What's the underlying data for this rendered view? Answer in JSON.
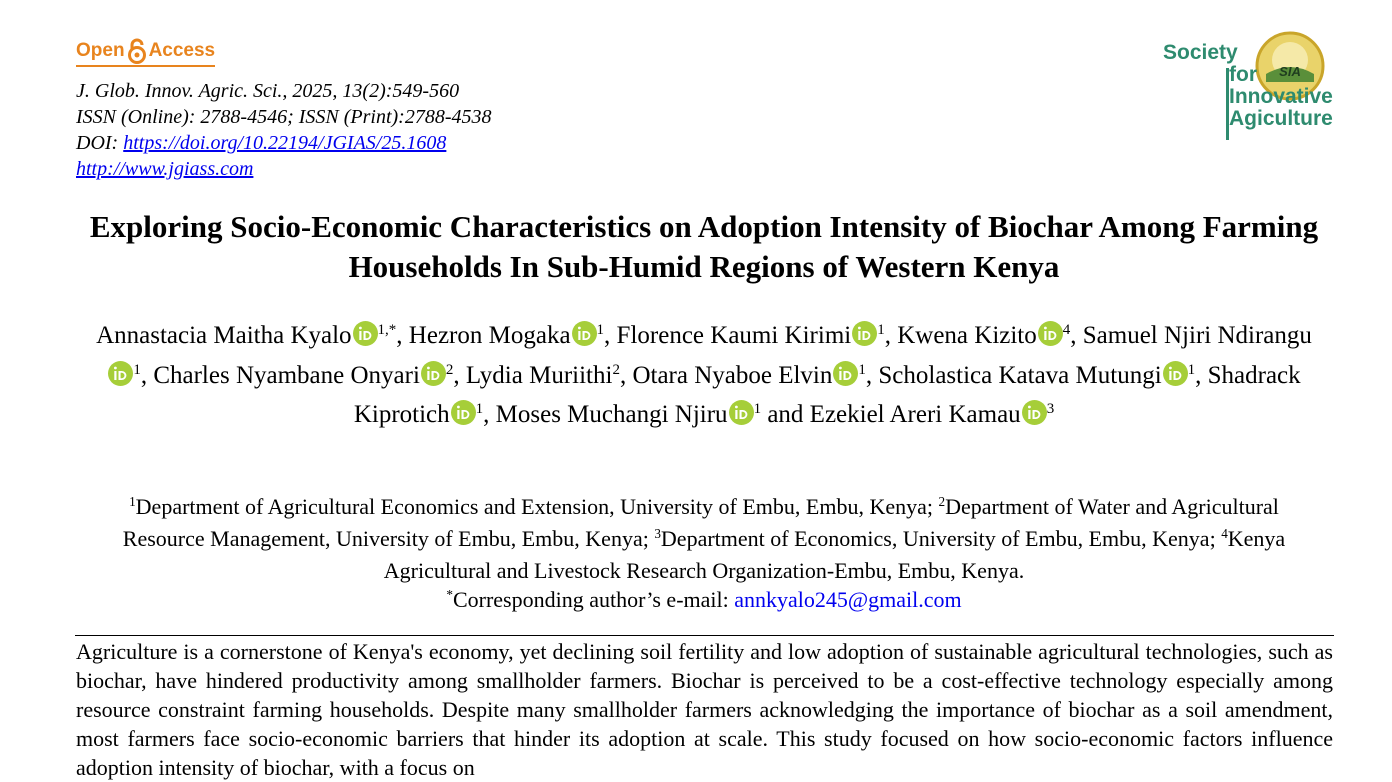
{
  "header": {
    "open_access": {
      "open": "Open",
      "access": "Access"
    },
    "citation": "J. Glob. Innov. Agric. Sci., 2025, 13(2):549-560",
    "issn": "ISSN (Online): 2788-4546; ISSN (Print):2788-4538",
    "doi_label": "DOI:",
    "doi_url": "https://doi.org/10.22194/JGIAS/25.1608",
    "website": "http://www.jgiass.com",
    "society_logo": {
      "line1": "Society",
      "line2": "for",
      "line3": "Innovative",
      "line4": "Agiculture",
      "badge": "SIA"
    }
  },
  "title": "Exploring Socio-Economic Characteristics on Adoption Intensity of Biochar Among Farming Households In Sub-Humid Regions of Western Kenya",
  "authors": [
    {
      "name": "Annastacia Maitha Kyalo",
      "affil": "1,*",
      "sep": ","
    },
    {
      "name": "Hezron Mogaka",
      "affil": "1",
      "sep": ","
    },
    {
      "name": "Florence Kaumi Kirimi",
      "affil": "1",
      "sep": ","
    },
    {
      "name": "Kwena Kizito",
      "affil": "4",
      "sep": ","
    },
    {
      "name": "Samuel Njiri Ndirangu",
      "affil": "1",
      "sep": ","
    },
    {
      "name": "Charles Nyambane Onyari",
      "affil": "2",
      "sep": ","
    },
    {
      "name": "Lydia Muriithi",
      "affil": "2",
      "orcid": false,
      "sep": ","
    },
    {
      "name": "Otara Nyaboe Elvin",
      "affil": "1",
      "sep": ","
    },
    {
      "name": "Scholastica Katava Mutungi",
      "affil": "1",
      "sep": ","
    },
    {
      "name": "Shadrack Kiprotich",
      "affil": "1",
      "sep": ","
    },
    {
      "name": "Moses Muchangi Njiru",
      "affil": "1",
      "sep": "and"
    },
    {
      "name": "Ezekiel Areri Kamau",
      "affil": "3"
    }
  ],
  "affiliations": [
    {
      "sup": "1",
      "text": "Department of Agricultural Economics and Extension, University of Embu, Embu, Kenya;"
    },
    {
      "sup": "2",
      "text": "Department of Water and Agricultural Resource Management, University of Embu, Embu, Kenya;"
    },
    {
      "sup": "3",
      "text": "Department of Economics, University of Embu, Embu, Kenya;"
    },
    {
      "sup": "4",
      "text": "Kenya Agricultural and Livestock Research Organization-Embu, Embu, Kenya."
    }
  ],
  "correspondence": {
    "sup": "*",
    "label": "Corresponding author’s e-mail:",
    "email": "annkyalo245@gmail.com"
  },
  "abstract": "Agriculture is a cornerstone of Kenya's economy, yet declining soil fertility and low adoption of sustainable agricultural technologies, such as biochar, have hindered productivity among smallholder farmers. Biochar is perceived to be a cost-effective technology especially among resource constraint farming households. Despite many smallholder farmers acknowledging the importance of biochar as a soil amendment, most farmers face socio-economic barriers that hinder its adoption at scale. This study focused on how socio-economic factors influence adoption intensity of biochar, with a focus on"
}
